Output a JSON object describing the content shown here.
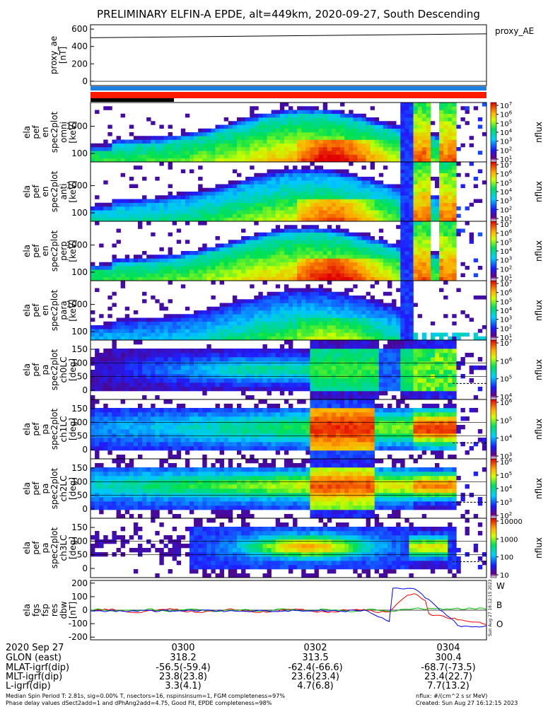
{
  "title": "PRELIMINARY ELFIN-A EPDE, alt=449km, 2020-09-27, South Descending",
  "colors": {
    "bar_blue": "#1f7fe0",
    "bar_red": "#ff1a00",
    "bar_black": "#000000",
    "w_color": "#ff0000",
    "b_color": "#00c000",
    "o_color": "#0000ff"
  },
  "chart_data": [
    {
      "type": "line",
      "ylabel": "proxy_ae\n[nT]",
      "ylim": [
        -50,
        650
      ],
      "yticks": [
        "600",
        "400",
        "200",
        "0"
      ],
      "legend": "proxy_AE",
      "x_hours": [
        0.0,
        0.1
      ],
      "values": [
        500,
        545
      ]
    },
    {
      "type": "heatmap",
      "ylabel": "ela\npef\nen\nspec2plot\nomni\n[keV]",
      "yticks": [
        "1000",
        "100"
      ],
      "colorbar_ticks": [
        "10^7",
        "10^6",
        "10^5",
        "10^4",
        "10^3",
        "10^2",
        "10^1"
      ],
      "colorbar_label": "nflux"
    },
    {
      "type": "heatmap",
      "ylabel": "ela\npef\nen\nspec2plot\nanti\n[keV]",
      "yticks": [
        "1000",
        "100"
      ],
      "colorbar_ticks": [
        "10^7",
        "10^6",
        "10^5",
        "10^4",
        "10^3",
        "10^2",
        "10^1"
      ],
      "colorbar_label": "nflux"
    },
    {
      "type": "heatmap",
      "ylabel": "ela\npef\nen\nspec2plot\nperp\n[keV]",
      "yticks": [
        "1000",
        "100"
      ],
      "colorbar_ticks": [
        "10^7",
        "10^6",
        "10^5",
        "10^4",
        "10^3",
        "10^2",
        "10^1"
      ],
      "colorbar_label": "nflux"
    },
    {
      "type": "heatmap",
      "ylabel": "ela\npef\nen\nspec2plot\npara\n[keV]",
      "yticks": [
        "1000",
        "100"
      ],
      "colorbar_ticks": [
        "10^7",
        "10^6",
        "10^5",
        "10^4",
        "10^3",
        "10^2",
        "10^1"
      ],
      "colorbar_label": "nflux"
    },
    {
      "type": "heatmap",
      "ylabel": "ela\npef\npa\nspec2plot\nch0LC\n[deg]",
      "yticks": [
        "150",
        "100",
        "50",
        "0"
      ],
      "colorbar_ticks": [
        "10^7",
        "10^6",
        "10^5",
        "10^4"
      ],
      "colorbar_label": "nflux"
    },
    {
      "type": "heatmap",
      "ylabel": "ela\npef\npa\nspec2plot\nch1LC\n[deg]",
      "yticks": [
        "150",
        "100",
        "50",
        "0"
      ],
      "colorbar_ticks": [
        "10^6",
        "10^5",
        "10^4",
        "10^3"
      ],
      "colorbar_label": "nflux"
    },
    {
      "type": "heatmap",
      "ylabel": "ela\npef\npa\nspec2plot\nch2LC\n[deg]",
      "yticks": [
        "150",
        "100",
        "50",
        "0"
      ],
      "colorbar_ticks": [
        "10^6",
        "10^5",
        "10^4",
        "10^3",
        "10^2"
      ],
      "colorbar_label": "nflux"
    },
    {
      "type": "heatmap",
      "ylabel": "ela\npef\npa\nspec2plot\nch3LC\n[deg]",
      "yticks": [
        "150",
        "100",
        "50",
        "0"
      ],
      "colorbar_ticks": [
        "10000",
        "1000",
        "100",
        "10"
      ],
      "colorbar_label": "nflux"
    },
    {
      "type": "line",
      "ylabel": "ela\nfgs\nfsp\nres\ndbw\n[nT]",
      "yticks": [
        "200",
        "100",
        "0",
        "-100",
        "-200"
      ],
      "ylim": [
        -220,
        220
      ],
      "series_labels": [
        "W",
        "B",
        "O"
      ]
    }
  ],
  "footer": {
    "rows": [
      {
        "label": "2020 Sep 27",
        "v1": "0300",
        "v2": "0302",
        "v3": "0304"
      },
      {
        "label": "GLON (east)",
        "v1": "318.2",
        "v2": "313.5",
        "v3": "300.4"
      },
      {
        "label": "MLAT-igrf(dip)",
        "v1": "-56.5(-59.4)",
        "v2": "-62.4(-66.6)",
        "v3": "-68.7(-73.5)"
      },
      {
        "label": "MLT-igrf(dip)",
        "v1": "23.8(23.8)",
        "v2": "23.6(23.4)",
        "v3": "23.4(22.7)"
      },
      {
        "label": "L-igrf(dip)",
        "v1": "3.3(4.1)",
        "v2": "4.7(6.8)",
        "v3": "7.7(13.2)"
      }
    ],
    "note1": "Median Spin Period T: 2.81s, sig=0.00% T, nsectors=16, nspinsinsum=1, FGM completeness=97%",
    "note2": "Phase delay values dSect2add=1 and dPhAng2add=4.75, Good Fit, EPDE completeness=98%",
    "nflux_units": "nflux: #/(cm^2 s sr MeV)",
    "created": "Created: Sun Aug 27 16:12:15 2023",
    "side_stamp": "Sun Aug 27 16:12:15 2023"
  }
}
